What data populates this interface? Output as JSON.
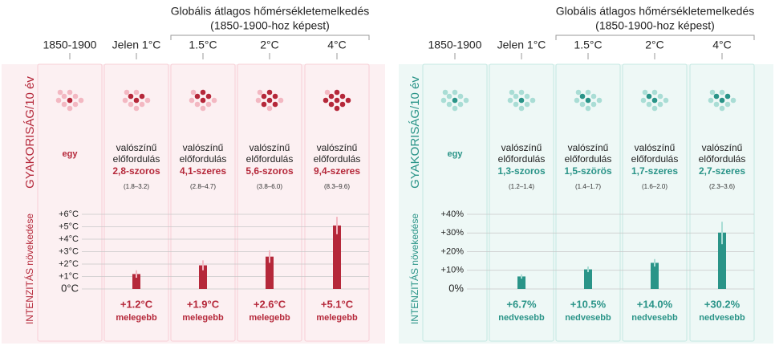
{
  "chart_data": [
    {
      "type": "bar",
      "title": "Globális átlagos hőmérsékletemelkedés",
      "subtitle": "(1850-1900-hoz képest)",
      "baseline_label": "1850-1900",
      "categories": [
        "Jelen 1°C",
        "1.5°C",
        "2°C",
        "4°C"
      ],
      "frequency_label": "GYAKORISÁG/10 év",
      "intensity_label": "INTENZITÁS növekedése",
      "color": "#b5283a",
      "light_color": "#f3b8c2",
      "background": "#fcf0f2",
      "baseline_dots": 1,
      "dots": [
        3,
        4,
        6,
        9
      ],
      "baseline_frequency": "egy",
      "frequency_lines": [
        [
          "valószínű",
          "előfordulás"
        ],
        [
          "valószínű",
          "előfordulás"
        ],
        [
          "valószínű",
          "előfordulás"
        ],
        [
          "valószínű",
          "előfordulás"
        ]
      ],
      "frequency_factors": [
        "2,8-szoros",
        "4,1-szeres",
        "5,6-szoros",
        "9,4-szeres"
      ],
      "frequency_ranges": [
        "(1.8–3.2)",
        "(2.8–4.7)",
        "(3.8–6.0)",
        "(8.3–9.6)"
      ],
      "values": [
        1.2,
        1.9,
        2.6,
        5.1
      ],
      "value_labels": [
        "+1.2°C",
        "+1.9°C",
        "+2.6°C",
        "+5.1°C"
      ],
      "error_low": [
        0.9,
        1.5,
        2.1,
        4.4
      ],
      "error_high": [
        1.5,
        2.3,
        3.1,
        5.8
      ],
      "value_notes": [
        "melegebb",
        "melegebb",
        "melegebb",
        "melegebb"
      ],
      "ylim": [
        0,
        6
      ],
      "yticks": [
        {
          "value": 0,
          "label": "0°C"
        },
        {
          "value": 1,
          "label": "+1°C"
        },
        {
          "value": 2,
          "label": "+2°C"
        },
        {
          "value": 3,
          "label": "+3°C"
        },
        {
          "value": 4,
          "label": "+4°C"
        },
        {
          "value": 5,
          "label": "+5°C"
        },
        {
          "value": 6,
          "label": "+6°C"
        }
      ]
    },
    {
      "type": "bar",
      "title": "Globális átlagos hőmérsékletemelkedés",
      "subtitle": "(1850-1900-hoz képest)",
      "baseline_label": "1850-1900",
      "categories": [
        "Jelen 1°C",
        "1.5°C",
        "2°C",
        "4°C"
      ],
      "frequency_label": "GYAKORISÁG/10 év",
      "intensity_label": "INTENZITÁS növekedése",
      "color": "#2a9488",
      "light_color": "#a9ddd5",
      "background": "#eef8f6",
      "baseline_dots": 1,
      "dots": [
        1,
        2,
        2,
        3
      ],
      "baseline_frequency": "egy",
      "frequency_lines": [
        [
          "valószínű",
          "előfordulás"
        ],
        [
          "valószínű",
          "előfordulás"
        ],
        [
          "valószínű",
          "előfordulás"
        ],
        [
          "valószínű",
          "előfordulás"
        ]
      ],
      "frequency_factors": [
        "1,3-szoros",
        "1,5-szörös",
        "1,7-szeres",
        "2,7-szeres"
      ],
      "frequency_ranges": [
        "(1.2–1.4)",
        "(1.4–1.7)",
        "(1.6–2.0)",
        "(2.3–3.6)"
      ],
      "values": [
        6.7,
        10.5,
        14.0,
        30.2
      ],
      "value_labels": [
        "+6.7%",
        "+10.5%",
        "+14.0%",
        "+30.2%"
      ],
      "error_low": [
        5.5,
        9,
        12,
        24
      ],
      "error_high": [
        7.8,
        12,
        16,
        36
      ],
      "value_notes": [
        "nedvesebb",
        "nedvesebb",
        "nedvesebb",
        "nedvesebb"
      ],
      "ylim": [
        0,
        40
      ],
      "yticks": [
        {
          "value": 0,
          "label": "0%"
        },
        {
          "value": 10,
          "label": "+10%"
        },
        {
          "value": 20,
          "label": "+20%"
        },
        {
          "value": 30,
          "label": "+30%"
        },
        {
          "value": 40,
          "label": "+40%"
        }
      ]
    }
  ]
}
